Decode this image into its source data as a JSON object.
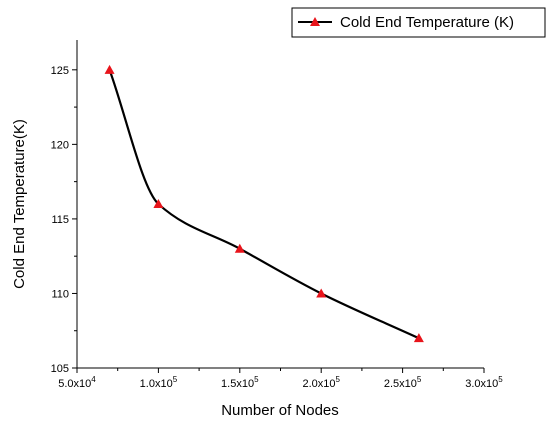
{
  "chart_data": {
    "type": "line",
    "title": "",
    "xlabel": "Number of Nodes",
    "ylabel": "Cold End Temperature(K)",
    "xlim": [
      50000,
      300000
    ],
    "ylim": [
      105,
      127
    ],
    "x_ticks": [
      50000,
      100000,
      150000,
      200000,
      250000,
      300000
    ],
    "x_tick_labels": [
      {
        "base": "5.0x10",
        "exp": "4"
      },
      {
        "base": "1.0x10",
        "exp": "5"
      },
      {
        "base": "1.5x10",
        "exp": "5"
      },
      {
        "base": "2.0x10",
        "exp": "5"
      },
      {
        "base": "2.5x10",
        "exp": "5"
      },
      {
        "base": "3.0x10",
        "exp": "5"
      }
    ],
    "y_ticks": [
      105,
      110,
      115,
      120,
      125
    ],
    "y_tick_labels": [
      "105",
      "110",
      "115",
      "120",
      "125"
    ],
    "series": [
      {
        "name": "Cold End Temperature (K)",
        "x": [
          70000,
          100000,
          150000,
          200000,
          260000
        ],
        "y": [
          125,
          116,
          113,
          110,
          107
        ],
        "line_color": "#000000",
        "marker": "triangle",
        "marker_color": "#e8141b"
      }
    ],
    "legend_position": "top-right",
    "grid": false
  }
}
